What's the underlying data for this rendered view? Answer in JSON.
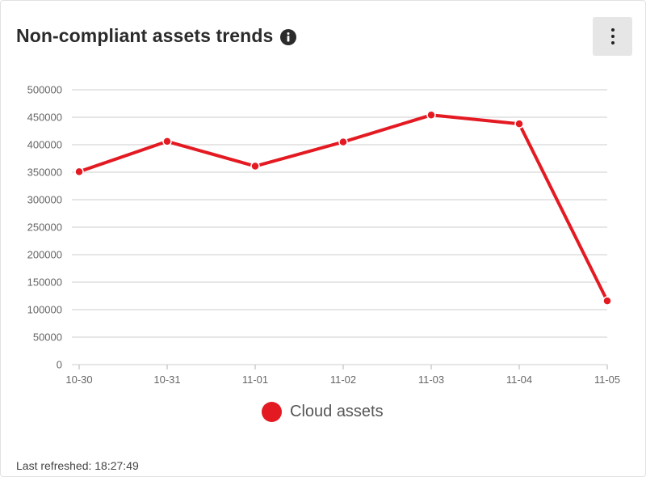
{
  "header": {
    "title": "Non-compliant assets trends",
    "info_icon": "info-icon",
    "menu_icon": "more-vertical-icon"
  },
  "chart_data": {
    "type": "line",
    "title": "",
    "xlabel": "",
    "ylabel": "",
    "categories": [
      "10-30",
      "10-31",
      "11-01",
      "11-02",
      "11-03",
      "11-04",
      "11-05"
    ],
    "y_ticks": [
      "0",
      "50000",
      "100000",
      "150000",
      "200000",
      "250000",
      "300000",
      "350000",
      "400000",
      "450000",
      "500000"
    ],
    "ylim": [
      0,
      500000
    ],
    "grid": true,
    "legend_position": "bottom",
    "series": [
      {
        "name": "Cloud assets",
        "color": "#e41a22",
        "values": [
          351000,
          406000,
          361000,
          405000,
          454000,
          438000,
          116000
        ]
      }
    ]
  },
  "legend": {
    "label": "Cloud assets",
    "color": "#e41a22"
  },
  "footer": {
    "refreshed": "Last refreshed: 18:27:49"
  }
}
